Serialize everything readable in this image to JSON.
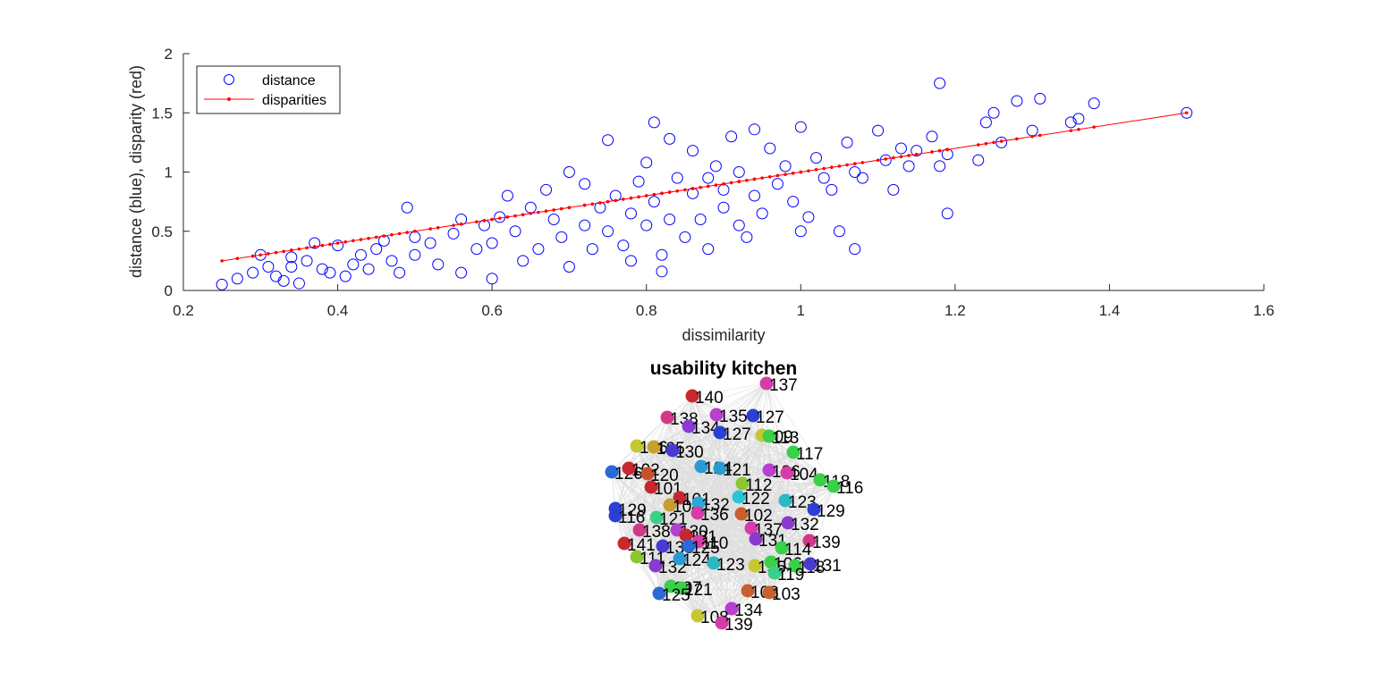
{
  "chart_data": [
    {
      "type": "scatter",
      "xlabel": "dissimilarity",
      "ylabel": "distance (blue), disparity (red)",
      "xlim": [
        0.2,
        1.6
      ],
      "ylim": [
        0,
        2
      ],
      "xticks": [
        "0.2",
        "0.4",
        "0.6",
        "0.8",
        "1",
        "1.2",
        "1.4",
        "1.6"
      ],
      "yticks": [
        "0",
        "0.5",
        "1",
        "1.5",
        "2"
      ],
      "legend": {
        "placement": "top-left",
        "entries": [
          "distance",
          "disparities"
        ]
      },
      "colors": {
        "distance": "#0000ff",
        "disparities": "#ff0000"
      },
      "series": [
        {
          "name": "distance",
          "marker": "open-circle",
          "points": [
            [
              0.25,
              0.05
            ],
            [
              0.27,
              0.1
            ],
            [
              0.29,
              0.15
            ],
            [
              0.3,
              0.3
            ],
            [
              0.31,
              0.2
            ],
            [
              0.32,
              0.12
            ],
            [
              0.33,
              0.08
            ],
            [
              0.34,
              0.28
            ],
            [
              0.34,
              0.2
            ],
            [
              0.35,
              0.06
            ],
            [
              0.36,
              0.25
            ],
            [
              0.37,
              0.4
            ],
            [
              0.38,
              0.18
            ],
            [
              0.39,
              0.15
            ],
            [
              0.4,
              0.38
            ],
            [
              0.41,
              0.12
            ],
            [
              0.42,
              0.22
            ],
            [
              0.43,
              0.3
            ],
            [
              0.44,
              0.18
            ],
            [
              0.45,
              0.35
            ],
            [
              0.46,
              0.42
            ],
            [
              0.47,
              0.25
            ],
            [
              0.48,
              0.15
            ],
            [
              0.49,
              0.7
            ],
            [
              0.5,
              0.45
            ],
            [
              0.5,
              0.3
            ],
            [
              0.52,
              0.4
            ],
            [
              0.53,
              0.22
            ],
            [
              0.55,
              0.48
            ],
            [
              0.56,
              0.6
            ],
            [
              0.56,
              0.15
            ],
            [
              0.58,
              0.35
            ],
            [
              0.59,
              0.55
            ],
            [
              0.6,
              0.4
            ],
            [
              0.6,
              0.1
            ],
            [
              0.61,
              0.62
            ],
            [
              0.62,
              0.8
            ],
            [
              0.63,
              0.5
            ],
            [
              0.64,
              0.25
            ],
            [
              0.65,
              0.7
            ],
            [
              0.66,
              0.35
            ],
            [
              0.67,
              0.85
            ],
            [
              0.68,
              0.6
            ],
            [
              0.69,
              0.45
            ],
            [
              0.7,
              1.0
            ],
            [
              0.7,
              0.2
            ],
            [
              0.72,
              0.55
            ],
            [
              0.72,
              0.9
            ],
            [
              0.73,
              0.35
            ],
            [
              0.74,
              0.7
            ],
            [
              0.75,
              1.27
            ],
            [
              0.75,
              0.5
            ],
            [
              0.76,
              0.8
            ],
            [
              0.77,
              0.38
            ],
            [
              0.78,
              0.65
            ],
            [
              0.78,
              0.25
            ],
            [
              0.79,
              0.92
            ],
            [
              0.8,
              0.55
            ],
            [
              0.8,
              1.08
            ],
            [
              0.81,
              1.42
            ],
            [
              0.81,
              0.75
            ],
            [
              0.82,
              0.3
            ],
            [
              0.82,
              0.16
            ],
            [
              0.83,
              1.28
            ],
            [
              0.83,
              0.6
            ],
            [
              0.84,
              0.95
            ],
            [
              0.85,
              0.45
            ],
            [
              0.86,
              0.82
            ],
            [
              0.86,
              1.18
            ],
            [
              0.87,
              0.6
            ],
            [
              0.88,
              0.35
            ],
            [
              0.88,
              0.95
            ],
            [
              0.89,
              1.05
            ],
            [
              0.9,
              0.7
            ],
            [
              0.9,
              0.85
            ],
            [
              0.91,
              1.3
            ],
            [
              0.92,
              0.55
            ],
            [
              0.92,
              1.0
            ],
            [
              0.93,
              0.45
            ],
            [
              0.94,
              0.8
            ],
            [
              0.94,
              1.36
            ],
            [
              0.95,
              0.65
            ],
            [
              0.96,
              1.2
            ],
            [
              0.97,
              0.9
            ],
            [
              0.98,
              1.05
            ],
            [
              0.99,
              0.75
            ],
            [
              1.0,
              1.38
            ],
            [
              1.0,
              0.5
            ],
            [
              1.01,
              0.62
            ],
            [
              1.02,
              1.12
            ],
            [
              1.03,
              0.95
            ],
            [
              1.04,
              0.85
            ],
            [
              1.05,
              0.5
            ],
            [
              1.06,
              1.25
            ],
            [
              1.07,
              1.0
            ],
            [
              1.07,
              0.35
            ],
            [
              1.08,
              0.95
            ],
            [
              1.1,
              1.35
            ],
            [
              1.11,
              1.1
            ],
            [
              1.12,
              0.85
            ],
            [
              1.13,
              1.2
            ],
            [
              1.14,
              1.05
            ],
            [
              1.15,
              1.18
            ],
            [
              1.17,
              1.3
            ],
            [
              1.18,
              1.75
            ],
            [
              1.18,
              1.05
            ],
            [
              1.19,
              0.65
            ],
            [
              1.19,
              1.15
            ],
            [
              1.23,
              1.1
            ],
            [
              1.24,
              1.42
            ],
            [
              1.25,
              1.5
            ],
            [
              1.26,
              1.25
            ],
            [
              1.28,
              1.6
            ],
            [
              1.3,
              1.35
            ],
            [
              1.31,
              1.62
            ],
            [
              1.35,
              1.42
            ],
            [
              1.36,
              1.45
            ],
            [
              1.38,
              1.58
            ],
            [
              1.5,
              1.5
            ]
          ]
        },
        {
          "name": "disparities",
          "marker": "dot-line",
          "points": [
            [
              0.25,
              0.25
            ],
            [
              1.5,
              1.5
            ]
          ]
        }
      ]
    },
    {
      "type": "network",
      "title": "usability kitchen",
      "nodes": [
        {
          "label": "137",
          "c": "#d63ca7"
        },
        {
          "label": "140",
          "c": "#c7282f"
        },
        {
          "label": "138",
          "c": "#d2388a"
        },
        {
          "label": "135",
          "c": "#b83fd0"
        },
        {
          "label": "127",
          "c": "#2b3fd4"
        },
        {
          "label": "134",
          "c": "#8a3ad0"
        },
        {
          "label": "127",
          "c": "#2b3fd4"
        },
        {
          "label": "109",
          "c": "#c6c732"
        },
        {
          "label": "113",
          "c": "#3ad04a"
        },
        {
          "label": "106",
          "c": "#c6c732"
        },
        {
          "label": "105",
          "c": "#c4a12f"
        },
        {
          "label": "130",
          "c": "#4a3bd0"
        },
        {
          "label": "117",
          "c": "#3ad04a"
        },
        {
          "label": "126",
          "c": "#2b6ad4"
        },
        {
          "label": "102",
          "c": "#c7282f"
        },
        {
          "label": "120",
          "c": "#c7512f"
        },
        {
          "label": "124",
          "c": "#2b9ad4"
        },
        {
          "label": "121",
          "c": "#2b9ad4"
        },
        {
          "label": "136",
          "c": "#b83fd0"
        },
        {
          "label": "104",
          "c": "#d63ca7"
        },
        {
          "label": "118",
          "c": "#3ad04a"
        },
        {
          "label": "116",
          "c": "#3ad04a"
        },
        {
          "label": "101",
          "c": "#c7282f"
        },
        {
          "label": "112",
          "c": "#8cc732"
        },
        {
          "label": "122",
          "c": "#2bc4d4"
        },
        {
          "label": "123",
          "c": "#2bb8c4"
        },
        {
          "label": "101",
          "c": "#c7282f"
        },
        {
          "label": "129",
          "c": "#2b3fd4"
        },
        {
          "label": "104",
          "c": "#c4a12f"
        },
        {
          "label": "132",
          "c": "#2ba8d4"
        },
        {
          "label": "136",
          "c": "#d63ca7"
        },
        {
          "label": "102",
          "c": "#c7602f"
        },
        {
          "label": "129",
          "c": "#2b3fd4"
        },
        {
          "label": "116",
          "c": "#2b3fd4"
        },
        {
          "label": "121",
          "c": "#3ad08a"
        },
        {
          "label": "132",
          "c": "#8a3ad0"
        },
        {
          "label": "137",
          "c": "#d63ca7"
        },
        {
          "label": "138",
          "c": "#d2388a"
        },
        {
          "label": "130",
          "c": "#b83fd0"
        },
        {
          "label": "131",
          "c": "#c7282f"
        },
        {
          "label": "110",
          "c": "#d63ca7"
        },
        {
          "label": "139",
          "c": "#d2388a"
        },
        {
          "label": "131",
          "c": "#8a3ad0"
        },
        {
          "label": "141",
          "c": "#c7282f"
        },
        {
          "label": "133",
          "c": "#4a3bd0"
        },
        {
          "label": "125",
          "c": "#2b6ad4"
        },
        {
          "label": "111",
          "c": "#8cc732"
        },
        {
          "label": "114",
          "c": "#3ad04a"
        },
        {
          "label": "132",
          "c": "#8a3ad0"
        },
        {
          "label": "124",
          "c": "#2b9ad4"
        },
        {
          "label": "123",
          "c": "#2bb8c4"
        },
        {
          "label": "135",
          "c": "#c6c732"
        },
        {
          "label": "106",
          "c": "#3ad04a"
        },
        {
          "label": "118",
          "c": "#3ad04a"
        },
        {
          "label": "131",
          "c": "#4a3bd0"
        },
        {
          "label": "119",
          "c": "#3ad08a"
        },
        {
          "label": "107",
          "c": "#3ad04a"
        },
        {
          "label": "121",
          "c": "#3ad04a"
        },
        {
          "label": "125",
          "c": "#2b6ad4"
        },
        {
          "label": "103",
          "c": "#c7602f"
        },
        {
          "label": "103",
          "c": "#c7602f"
        },
        {
          "label": "134",
          "c": "#b83fd0"
        },
        {
          "label": "108",
          "c": "#c6c732"
        },
        {
          "label": "139",
          "c": "#d63ca7"
        }
      ]
    }
  ]
}
